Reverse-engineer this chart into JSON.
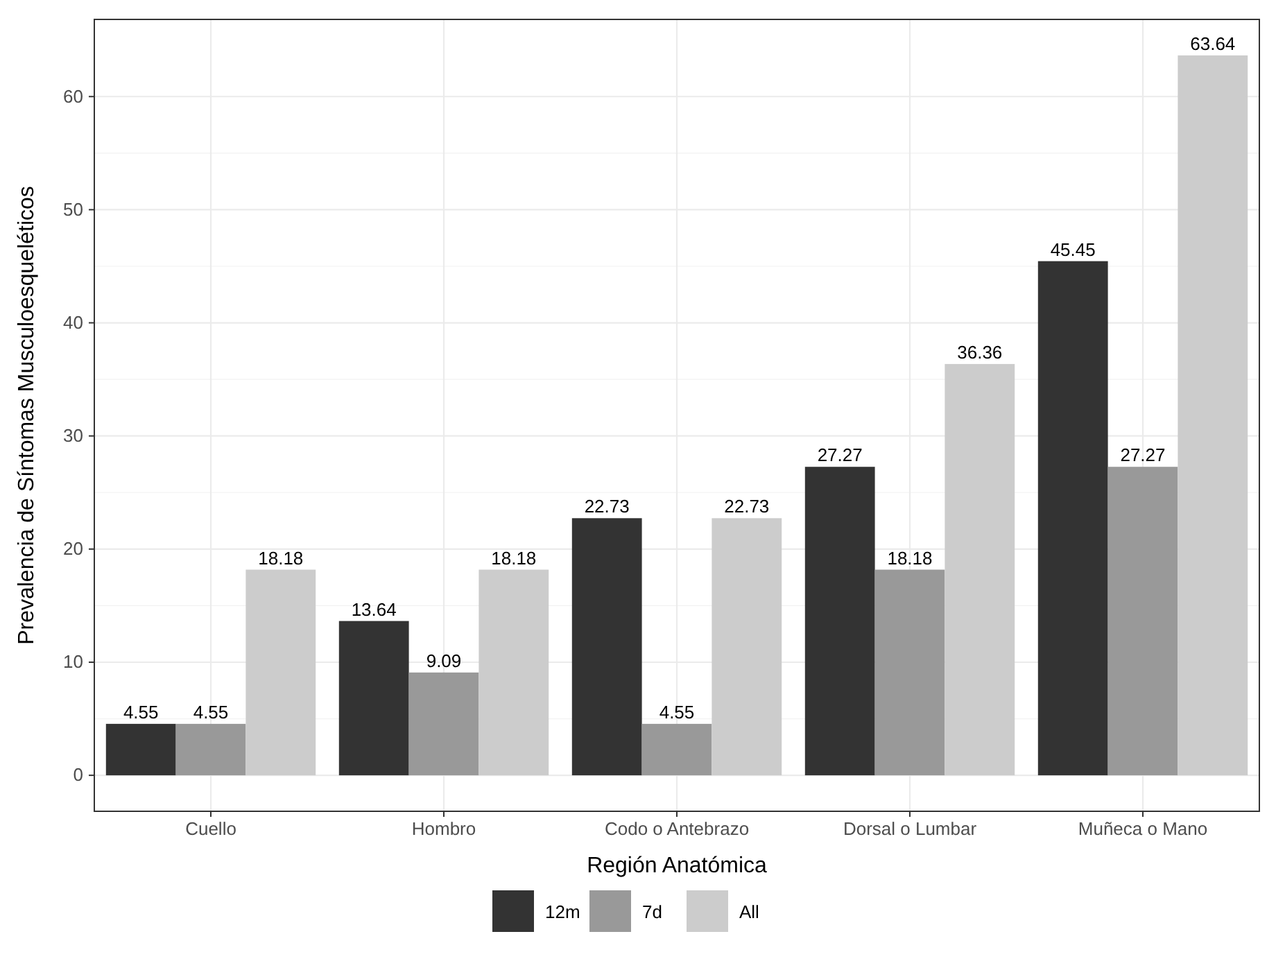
{
  "chart_data": {
    "type": "bar",
    "xlabel": "Región Anatómica",
    "ylabel": "Prevalencia de Síntomas Musculoesqueléticos",
    "categories": [
      "Cuello",
      "Hombro",
      "Codo o Antebrazo",
      "Dorsal o Lumbar",
      "Muñeca o Mano"
    ],
    "series": [
      {
        "name": "12m",
        "color": "#333333",
        "values": [
          4.55,
          13.64,
          22.73,
          27.27,
          45.45
        ]
      },
      {
        "name": "7d",
        "color": "#999999",
        "values": [
          4.55,
          9.09,
          4.55,
          18.18,
          27.27
        ]
      },
      {
        "name": "All",
        "color": "#cccccc",
        "values": [
          18.18,
          18.18,
          22.73,
          36.36,
          63.64
        ]
      }
    ],
    "ylim": [
      -3.18,
      66.82
    ],
    "yticks": [
      0,
      10,
      20,
      30,
      40,
      50,
      60
    ],
    "grid": true,
    "legend": "bottom",
    "data_labels": true
  }
}
